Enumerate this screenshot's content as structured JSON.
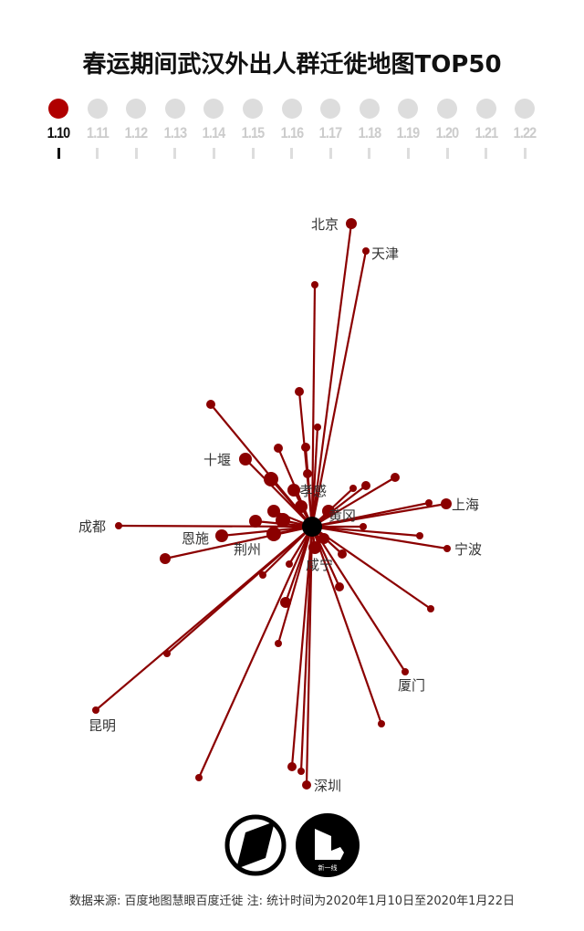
{
  "title": "春运期间武汉外出人群迁徙地图TOP50",
  "timeline": {
    "dates": [
      "1.10",
      "1.11",
      "1.12",
      "1.13",
      "1.14",
      "1.15",
      "1.16",
      "1.17",
      "1.18",
      "1.19",
      "1.20",
      "1.21",
      "1.22"
    ],
    "selected_index": 0,
    "active_color": "#b00000",
    "inactive_color": "#dddddd"
  },
  "chart_data": {
    "type": "flow-map",
    "origin": "武汉",
    "line_color": "#8b0000",
    "labeled_destinations": [
      "北京",
      "天津",
      "十堰",
      "孝感",
      "黄冈",
      "上海",
      "宁波",
      "成都",
      "恩施",
      "荆州",
      "咸宁",
      "厦门",
      "昆明",
      "深圳"
    ]
  },
  "logos": {
    "logo2_text": "新一线"
  },
  "footer": "数据来源: 百度地图慧眼百度迁徙  注: 统计时间为2020年1月10日至2020年1月22日"
}
